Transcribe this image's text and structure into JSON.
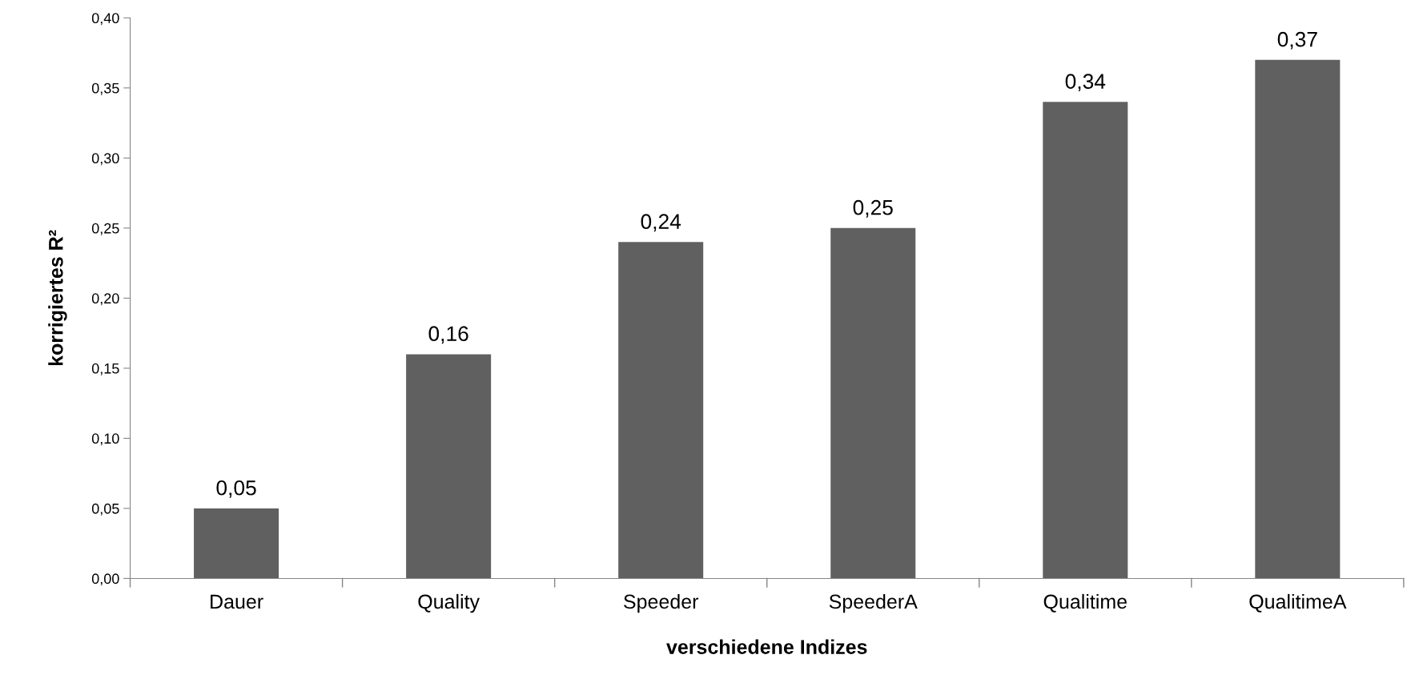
{
  "chart_data": {
    "type": "bar",
    "xlabel": "verschiedene Indizes",
    "ylabel": "korrigiertes R²",
    "categories": [
      "Dauer",
      "Quality",
      "Speeder",
      "SpeederA",
      "Qualitime",
      "QualitimeA"
    ],
    "values": [
      0.05,
      0.16,
      0.24,
      0.25,
      0.34,
      0.37
    ],
    "value_labels": [
      "0,05",
      "0,16",
      "0,24",
      "0,25",
      "0,34",
      "0,37"
    ],
    "color": "#606060",
    "ylim": [
      0,
      0.4
    ],
    "yticks": [
      {
        "value": 0,
        "label": "0,00"
      },
      {
        "value": 0.05,
        "label": "0,05"
      },
      {
        "value": 0.1,
        "label": "0,10"
      },
      {
        "value": 0.15,
        "label": "0,15"
      },
      {
        "value": 0.2,
        "label": "0,20"
      },
      {
        "value": 0.25,
        "label": "0,25"
      },
      {
        "value": 0.3,
        "label": "0,30"
      },
      {
        "value": 0.35,
        "label": "0,35"
      },
      {
        "value": 0.4,
        "label": "0,40"
      }
    ],
    "grid": false
  }
}
